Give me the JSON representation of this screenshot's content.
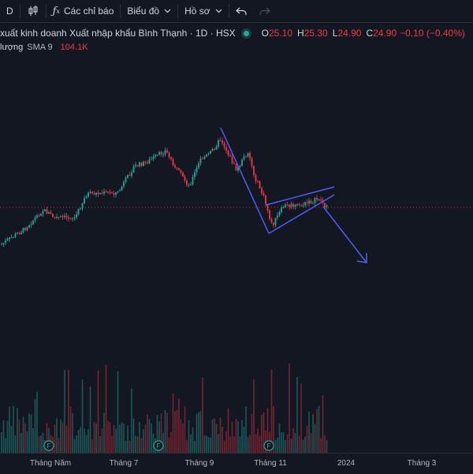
{
  "toolbar": {
    "interval": "D",
    "indicators_label": "Các chỉ báo",
    "chart_label": "Biểu đồ",
    "profile_label": "Hồ sơ"
  },
  "symbol": {
    "title": "xuất kinh doanh Xuất nhập khẩu Bình Thạnh · 1D · HSX",
    "o_label": "O",
    "o_value": "25.10",
    "h_label": "H",
    "h_value": "25.30",
    "l_label": "L",
    "l_value": "24.90",
    "c_label": "C",
    "c_value": "24.90",
    "change": "−0.10 (−0.40%)"
  },
  "volume": {
    "label": "lượng",
    "sma_label": "SMA 9",
    "value": "104.1K"
  },
  "colors": {
    "up": "#26a69a",
    "down": "#f23645",
    "drawing": "#4f5df5",
    "background": "#131722"
  },
  "xaxis": {
    "ticks": [
      "Tháng Năm",
      "Tháng 7",
      "Tháng 9",
      "Tháng 11",
      "2024",
      "Tháng 3"
    ]
  },
  "event_markers": [
    "F",
    "F",
    "F"
  ]
}
